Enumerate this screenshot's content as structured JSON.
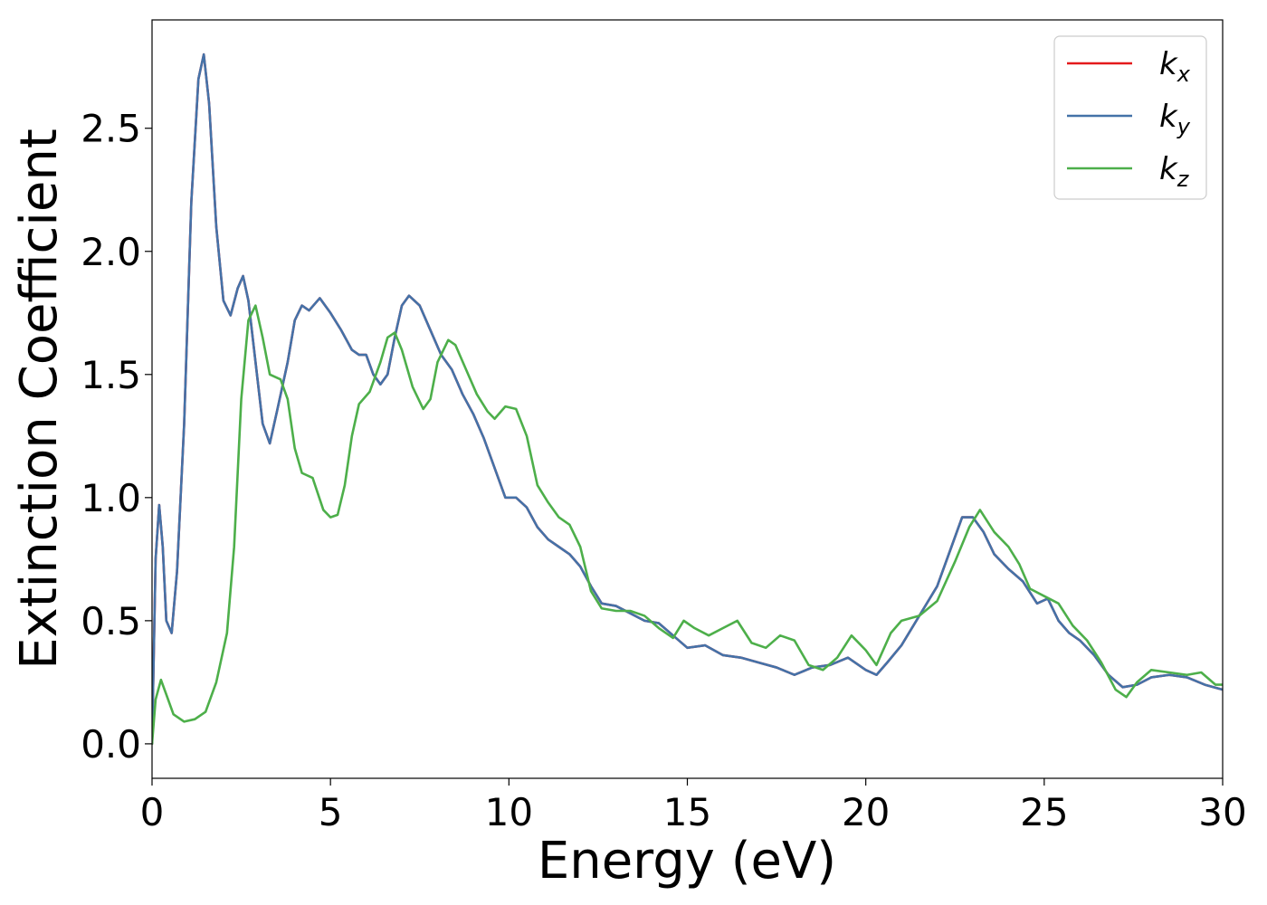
{
  "chart_data": {
    "type": "line",
    "title": "",
    "xlabel": "Energy (eV)",
    "ylabel": "Extinction Coefficient",
    "xlim": [
      0,
      30
    ],
    "ylim": [
      -0.14,
      2.94
    ],
    "xticks": [
      0,
      5,
      10,
      15,
      20,
      25,
      30
    ],
    "yticks": [
      0.0,
      0.5,
      1.0,
      1.5,
      2.0,
      2.5
    ],
    "xtick_labels": [
      "0",
      "5",
      "10",
      "15",
      "20",
      "25",
      "30"
    ],
    "ytick_labels": [
      "0.0",
      "0.5",
      "1.0",
      "1.5",
      "2.0",
      "2.5"
    ],
    "grid": false,
    "legend": "top-right",
    "series": [
      {
        "name": "k_x",
        "label_main": "k",
        "label_sub": "x",
        "color": "#e41a1c",
        "points": [
          [
            0,
            0.0
          ],
          [
            0.1,
            0.75
          ],
          [
            0.2,
            0.97
          ],
          [
            0.3,
            0.8
          ],
          [
            0.4,
            0.5
          ],
          [
            0.55,
            0.45
          ],
          [
            0.7,
            0.7
          ],
          [
            0.9,
            1.3
          ],
          [
            1.1,
            2.2
          ],
          [
            1.3,
            2.7
          ],
          [
            1.45,
            2.8
          ],
          [
            1.6,
            2.6
          ],
          [
            1.8,
            2.1
          ],
          [
            2.0,
            1.8
          ],
          [
            2.2,
            1.74
          ],
          [
            2.4,
            1.85
          ],
          [
            2.55,
            1.9
          ],
          [
            2.7,
            1.8
          ],
          [
            2.9,
            1.55
          ],
          [
            3.1,
            1.3
          ],
          [
            3.3,
            1.22
          ],
          [
            3.5,
            1.35
          ],
          [
            3.8,
            1.55
          ],
          [
            4.0,
            1.72
          ],
          [
            4.2,
            1.78
          ],
          [
            4.4,
            1.76
          ],
          [
            4.7,
            1.81
          ],
          [
            5.0,
            1.75
          ],
          [
            5.3,
            1.68
          ],
          [
            5.6,
            1.6
          ],
          [
            5.8,
            1.58
          ],
          [
            6.0,
            1.58
          ],
          [
            6.2,
            1.5
          ],
          [
            6.4,
            1.46
          ],
          [
            6.6,
            1.5
          ],
          [
            6.8,
            1.65
          ],
          [
            7.0,
            1.78
          ],
          [
            7.2,
            1.82
          ],
          [
            7.5,
            1.78
          ],
          [
            7.8,
            1.68
          ],
          [
            8.1,
            1.58
          ],
          [
            8.4,
            1.52
          ],
          [
            8.7,
            1.42
          ],
          [
            9.0,
            1.34
          ],
          [
            9.3,
            1.24
          ],
          [
            9.6,
            1.12
          ],
          [
            9.9,
            1.0
          ],
          [
            10.2,
            1.0
          ],
          [
            10.5,
            0.96
          ],
          [
            10.8,
            0.88
          ],
          [
            11.1,
            0.83
          ],
          [
            11.4,
            0.8
          ],
          [
            11.7,
            0.77
          ],
          [
            12.0,
            0.72
          ],
          [
            12.3,
            0.64
          ],
          [
            12.6,
            0.57
          ],
          [
            13.0,
            0.56
          ],
          [
            13.4,
            0.53
          ],
          [
            13.8,
            0.5
          ],
          [
            14.2,
            0.49
          ],
          [
            14.6,
            0.44
          ],
          [
            15.0,
            0.39
          ],
          [
            15.5,
            0.4
          ],
          [
            16.0,
            0.36
          ],
          [
            16.5,
            0.35
          ],
          [
            17.0,
            0.33
          ],
          [
            17.5,
            0.31
          ],
          [
            18.0,
            0.28
          ],
          [
            18.5,
            0.31
          ],
          [
            19.0,
            0.32
          ],
          [
            19.5,
            0.35
          ],
          [
            20.0,
            0.3
          ],
          [
            20.3,
            0.28
          ],
          [
            20.6,
            0.33
          ],
          [
            21.0,
            0.4
          ],
          [
            21.5,
            0.52
          ],
          [
            22.0,
            0.64
          ],
          [
            22.4,
            0.8
          ],
          [
            22.7,
            0.92
          ],
          [
            23.0,
            0.92
          ],
          [
            23.3,
            0.86
          ],
          [
            23.6,
            0.77
          ],
          [
            24.0,
            0.71
          ],
          [
            24.4,
            0.66
          ],
          [
            24.8,
            0.57
          ],
          [
            25.1,
            0.59
          ],
          [
            25.4,
            0.5
          ],
          [
            25.7,
            0.45
          ],
          [
            26.0,
            0.42
          ],
          [
            26.4,
            0.36
          ],
          [
            26.8,
            0.28
          ],
          [
            27.2,
            0.23
          ],
          [
            27.6,
            0.24
          ],
          [
            28.0,
            0.27
          ],
          [
            28.5,
            0.28
          ],
          [
            29.0,
            0.27
          ],
          [
            29.5,
            0.24
          ],
          [
            30.0,
            0.22
          ]
        ]
      },
      {
        "name": "k_y",
        "label_main": "k",
        "label_sub": "y",
        "color": "#4472a8",
        "points": [
          [
            0,
            0.0
          ],
          [
            0.1,
            0.75
          ],
          [
            0.2,
            0.97
          ],
          [
            0.3,
            0.8
          ],
          [
            0.4,
            0.5
          ],
          [
            0.55,
            0.45
          ],
          [
            0.7,
            0.7
          ],
          [
            0.9,
            1.3
          ],
          [
            1.1,
            2.2
          ],
          [
            1.3,
            2.7
          ],
          [
            1.45,
            2.8
          ],
          [
            1.6,
            2.6
          ],
          [
            1.8,
            2.1
          ],
          [
            2.0,
            1.8
          ],
          [
            2.2,
            1.74
          ],
          [
            2.4,
            1.85
          ],
          [
            2.55,
            1.9
          ],
          [
            2.7,
            1.8
          ],
          [
            2.9,
            1.55
          ],
          [
            3.1,
            1.3
          ],
          [
            3.3,
            1.22
          ],
          [
            3.5,
            1.35
          ],
          [
            3.8,
            1.55
          ],
          [
            4.0,
            1.72
          ],
          [
            4.2,
            1.78
          ],
          [
            4.4,
            1.76
          ],
          [
            4.7,
            1.81
          ],
          [
            5.0,
            1.75
          ],
          [
            5.3,
            1.68
          ],
          [
            5.6,
            1.6
          ],
          [
            5.8,
            1.58
          ],
          [
            6.0,
            1.58
          ],
          [
            6.2,
            1.5
          ],
          [
            6.4,
            1.46
          ],
          [
            6.6,
            1.5
          ],
          [
            6.8,
            1.65
          ],
          [
            7.0,
            1.78
          ],
          [
            7.2,
            1.82
          ],
          [
            7.5,
            1.78
          ],
          [
            7.8,
            1.68
          ],
          [
            8.1,
            1.58
          ],
          [
            8.4,
            1.52
          ],
          [
            8.7,
            1.42
          ],
          [
            9.0,
            1.34
          ],
          [
            9.3,
            1.24
          ],
          [
            9.6,
            1.12
          ],
          [
            9.9,
            1.0
          ],
          [
            10.2,
            1.0
          ],
          [
            10.5,
            0.96
          ],
          [
            10.8,
            0.88
          ],
          [
            11.1,
            0.83
          ],
          [
            11.4,
            0.8
          ],
          [
            11.7,
            0.77
          ],
          [
            12.0,
            0.72
          ],
          [
            12.3,
            0.64
          ],
          [
            12.6,
            0.57
          ],
          [
            13.0,
            0.56
          ],
          [
            13.4,
            0.53
          ],
          [
            13.8,
            0.5
          ],
          [
            14.2,
            0.49
          ],
          [
            14.6,
            0.44
          ],
          [
            15.0,
            0.39
          ],
          [
            15.5,
            0.4
          ],
          [
            16.0,
            0.36
          ],
          [
            16.5,
            0.35
          ],
          [
            17.0,
            0.33
          ],
          [
            17.5,
            0.31
          ],
          [
            18.0,
            0.28
          ],
          [
            18.5,
            0.31
          ],
          [
            19.0,
            0.32
          ],
          [
            19.5,
            0.35
          ],
          [
            20.0,
            0.3
          ],
          [
            20.3,
            0.28
          ],
          [
            20.6,
            0.33
          ],
          [
            21.0,
            0.4
          ],
          [
            21.5,
            0.52
          ],
          [
            22.0,
            0.64
          ],
          [
            22.4,
            0.8
          ],
          [
            22.7,
            0.92
          ],
          [
            23.0,
            0.92
          ],
          [
            23.3,
            0.86
          ],
          [
            23.6,
            0.77
          ],
          [
            24.0,
            0.71
          ],
          [
            24.4,
            0.66
          ],
          [
            24.8,
            0.57
          ],
          [
            25.1,
            0.59
          ],
          [
            25.4,
            0.5
          ],
          [
            25.7,
            0.45
          ],
          [
            26.0,
            0.42
          ],
          [
            26.4,
            0.36
          ],
          [
            26.8,
            0.28
          ],
          [
            27.2,
            0.23
          ],
          [
            27.6,
            0.24
          ],
          [
            28.0,
            0.27
          ],
          [
            28.5,
            0.28
          ],
          [
            29.0,
            0.27
          ],
          [
            29.5,
            0.24
          ],
          [
            30.0,
            0.22
          ]
        ]
      },
      {
        "name": "k_z",
        "label_main": "k",
        "label_sub": "z",
        "color": "#4daf4a",
        "points": [
          [
            0,
            0.0
          ],
          [
            0.1,
            0.18
          ],
          [
            0.25,
            0.26
          ],
          [
            0.4,
            0.2
          ],
          [
            0.6,
            0.12
          ],
          [
            0.9,
            0.09
          ],
          [
            1.2,
            0.1
          ],
          [
            1.5,
            0.13
          ],
          [
            1.8,
            0.25
          ],
          [
            2.1,
            0.45
          ],
          [
            2.3,
            0.8
          ],
          [
            2.5,
            1.4
          ],
          [
            2.7,
            1.72
          ],
          [
            2.9,
            1.78
          ],
          [
            3.1,
            1.65
          ],
          [
            3.3,
            1.5
          ],
          [
            3.6,
            1.48
          ],
          [
            3.8,
            1.4
          ],
          [
            4.0,
            1.2
          ],
          [
            4.2,
            1.1
          ],
          [
            4.5,
            1.08
          ],
          [
            4.8,
            0.95
          ],
          [
            5.0,
            0.92
          ],
          [
            5.2,
            0.93
          ],
          [
            5.4,
            1.05
          ],
          [
            5.6,
            1.25
          ],
          [
            5.8,
            1.38
          ],
          [
            6.1,
            1.43
          ],
          [
            6.4,
            1.55
          ],
          [
            6.6,
            1.65
          ],
          [
            6.8,
            1.67
          ],
          [
            7.0,
            1.6
          ],
          [
            7.3,
            1.45
          ],
          [
            7.6,
            1.36
          ],
          [
            7.8,
            1.4
          ],
          [
            8.0,
            1.55
          ],
          [
            8.3,
            1.64
          ],
          [
            8.5,
            1.62
          ],
          [
            8.8,
            1.52
          ],
          [
            9.1,
            1.42
          ],
          [
            9.4,
            1.35
          ],
          [
            9.6,
            1.32
          ],
          [
            9.9,
            1.37
          ],
          [
            10.2,
            1.36
          ],
          [
            10.5,
            1.25
          ],
          [
            10.8,
            1.05
          ],
          [
            11.1,
            0.98
          ],
          [
            11.4,
            0.92
          ],
          [
            11.7,
            0.89
          ],
          [
            12.0,
            0.8
          ],
          [
            12.3,
            0.62
          ],
          [
            12.6,
            0.55
          ],
          [
            13.0,
            0.54
          ],
          [
            13.4,
            0.54
          ],
          [
            13.8,
            0.52
          ],
          [
            14.2,
            0.47
          ],
          [
            14.6,
            0.43
          ],
          [
            14.9,
            0.5
          ],
          [
            15.2,
            0.47
          ],
          [
            15.6,
            0.44
          ],
          [
            16.0,
            0.47
          ],
          [
            16.4,
            0.5
          ],
          [
            16.8,
            0.41
          ],
          [
            17.2,
            0.39
          ],
          [
            17.6,
            0.44
          ],
          [
            18.0,
            0.42
          ],
          [
            18.4,
            0.32
          ],
          [
            18.8,
            0.3
          ],
          [
            19.2,
            0.35
          ],
          [
            19.6,
            0.44
          ],
          [
            20.0,
            0.38
          ],
          [
            20.3,
            0.32
          ],
          [
            20.7,
            0.45
          ],
          [
            21.0,
            0.5
          ],
          [
            21.5,
            0.52
          ],
          [
            22.0,
            0.58
          ],
          [
            22.5,
            0.74
          ],
          [
            22.9,
            0.88
          ],
          [
            23.2,
            0.95
          ],
          [
            23.6,
            0.86
          ],
          [
            24.0,
            0.8
          ],
          [
            24.3,
            0.73
          ],
          [
            24.6,
            0.63
          ],
          [
            25.0,
            0.6
          ],
          [
            25.4,
            0.57
          ],
          [
            25.8,
            0.48
          ],
          [
            26.2,
            0.42
          ],
          [
            26.6,
            0.33
          ],
          [
            27.0,
            0.22
          ],
          [
            27.3,
            0.19
          ],
          [
            27.6,
            0.25
          ],
          [
            28.0,
            0.3
          ],
          [
            28.5,
            0.29
          ],
          [
            29.0,
            0.28
          ],
          [
            29.4,
            0.29
          ],
          [
            29.8,
            0.24
          ],
          [
            30.0,
            0.24
          ]
        ]
      }
    ]
  }
}
